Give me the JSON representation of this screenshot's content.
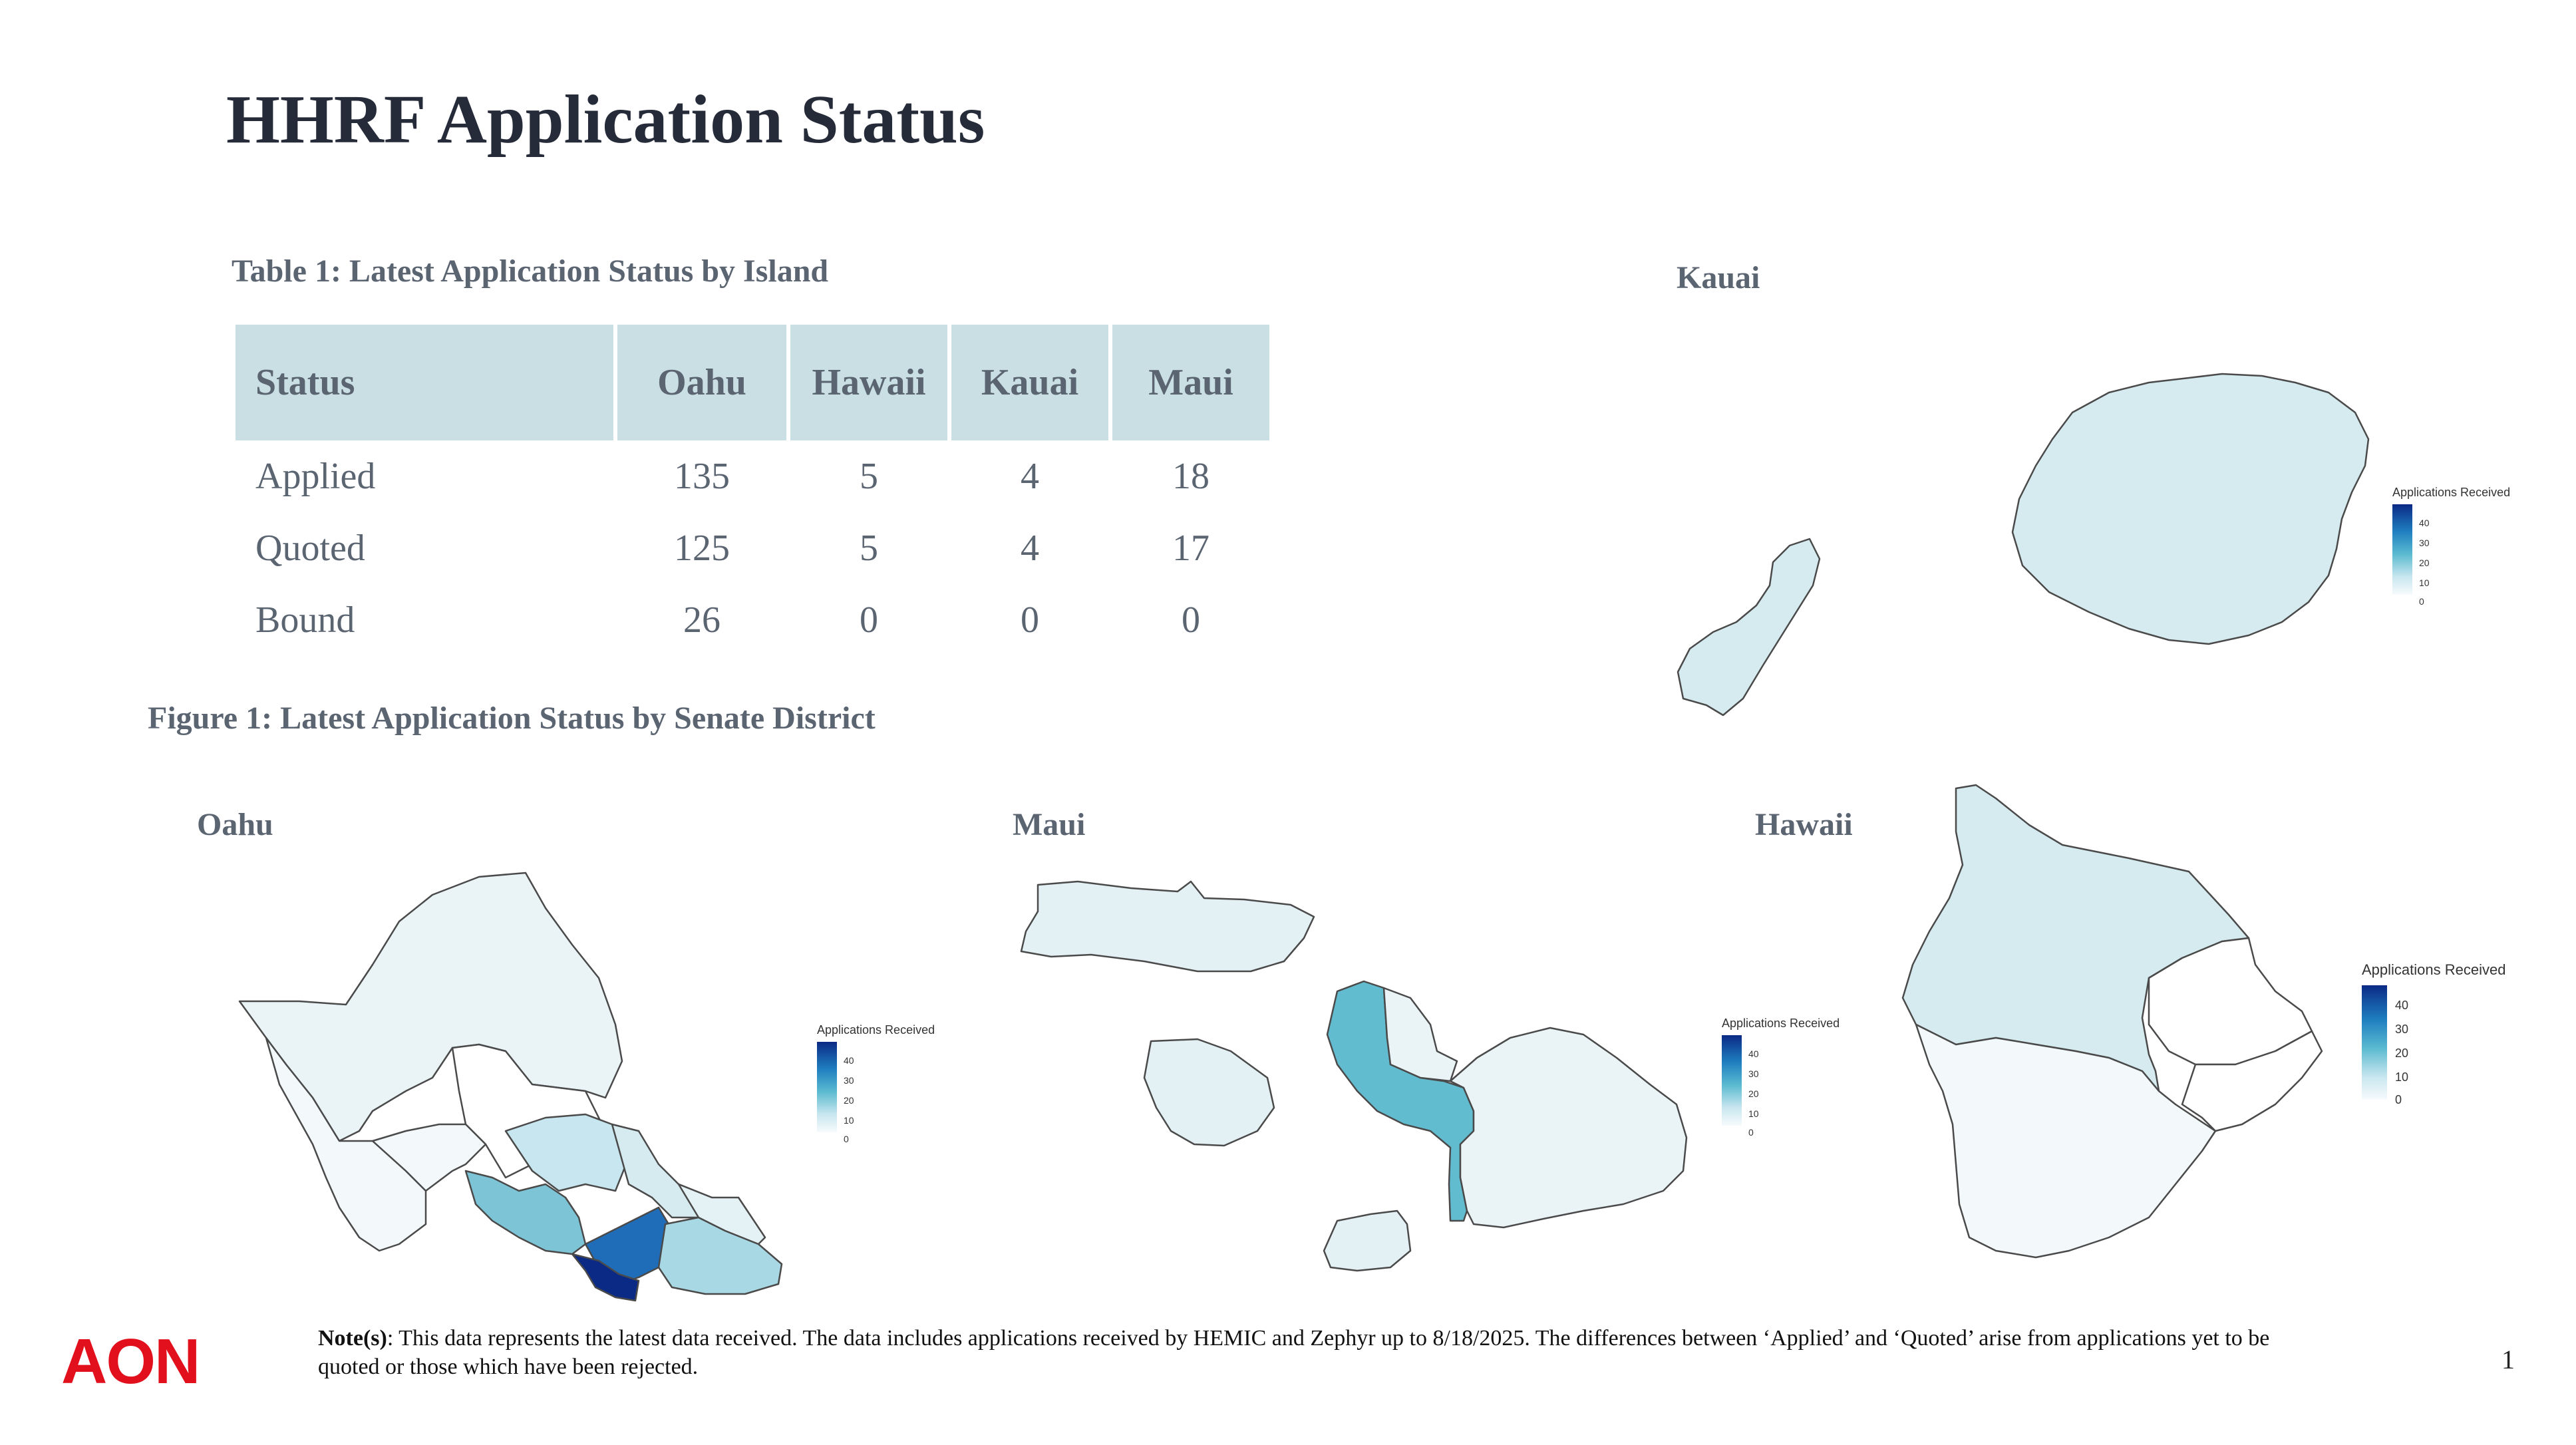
{
  "title": "HHRF Application Status",
  "table": {
    "caption": "Table 1: Latest Application Status by Island",
    "headers": [
      "Status",
      "Oahu",
      "Hawaii",
      "Kauai",
      "Maui"
    ],
    "rows": [
      {
        "status": "Applied",
        "oahu": "135",
        "hawaii": "5",
        "kauai": "4",
        "maui": "18"
      },
      {
        "status": "Quoted",
        "oahu": "125",
        "hawaii": "5",
        "kauai": "4",
        "maui": "17"
      },
      {
        "status": "Bound",
        "oahu": "26",
        "hawaii": "0",
        "kauai": "0",
        "maui": "0"
      }
    ]
  },
  "figure": {
    "caption": "Figure 1: Latest Application Status by Senate District",
    "maps": {
      "oahu": {
        "label": "Oahu"
      },
      "maui": {
        "label": "Maui"
      },
      "kauai": {
        "label": "Kauai"
      },
      "hawaii": {
        "label": "Hawaii"
      }
    },
    "legend": {
      "title": "Applications Received",
      "ticks": [
        "40",
        "30",
        "20",
        "10",
        "0"
      ],
      "scale": {
        "min": 0,
        "max": 45
      },
      "colors": {
        "low": "#f7fbfd",
        "mid": "#5bbad0",
        "high": "#0b2a86"
      }
    }
  },
  "footer": {
    "logo": "AON",
    "note_label": "Note(s)",
    "note_text": ": This data represents the latest data received. The data includes applications received by HEMIC and Zephyr up to 8/18/2025. The differences between ‘Applied’ and ‘Quoted’ arise from applications yet to be quoted or those which have been rejected.",
    "page_number": "1"
  }
}
